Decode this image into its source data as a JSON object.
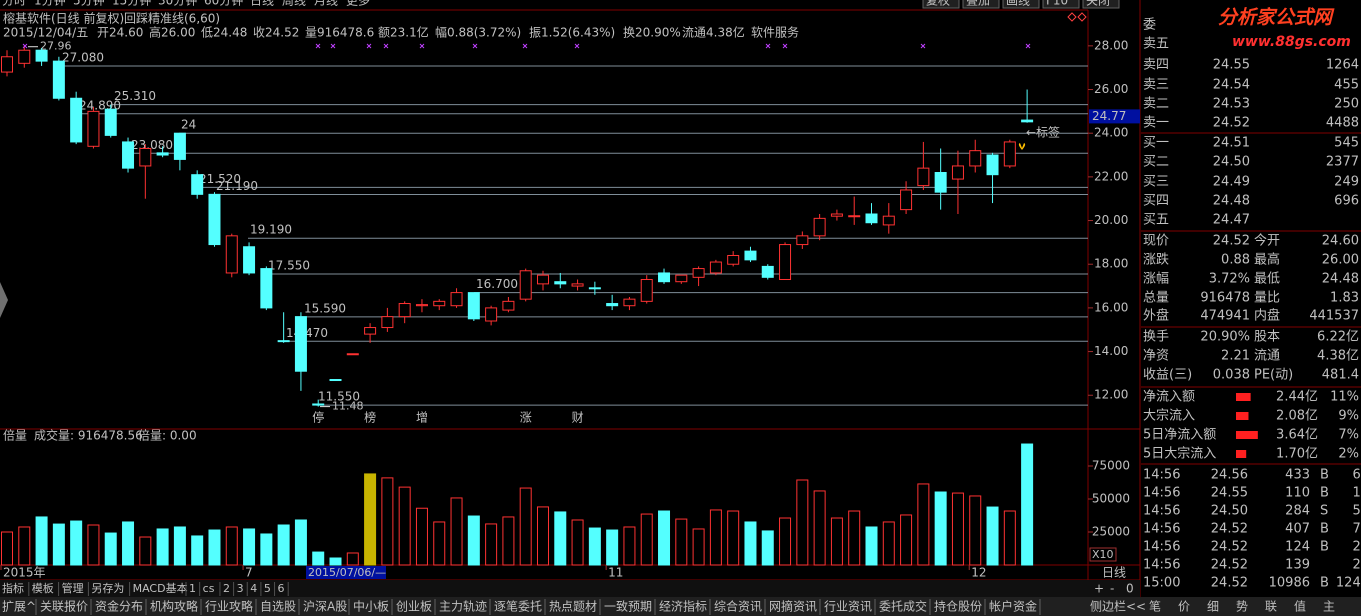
{
  "toolbar": {
    "periods": [
      "分时",
      "1分钟",
      "5分钟",
      "15分钟",
      "30分钟",
      "60分钟",
      "日线",
      "周线",
      "月线",
      "更多"
    ],
    "tools": [
      "复权",
      "叠加",
      "画线",
      "F10",
      "关闭"
    ]
  },
  "chart_data": [
    {
      "type": "candlestick",
      "title": "榕基软件(日线 前复权)",
      "indicator": "回踩精准线(6,60)",
      "info": [
        {
          "text": "2015/12/04/五",
          "color": "#c0c0c0"
        },
        {
          "text": "开24.60",
          "color": "#ff5050"
        },
        {
          "text": "高26.00",
          "color": "#ff5050"
        },
        {
          "text": "低24.48",
          "color": "#ff5050"
        },
        {
          "text": "收24.52",
          "color": "#ff5050"
        },
        {
          "text": "量916478.6",
          "color": "#e0e0e0"
        },
        {
          "text": "额23.1亿",
          "color": "#e0e0e0"
        },
        {
          "text": "幅0.88(3.72%)",
          "color": "#ff5050"
        },
        {
          "text": "振1.52(6.43%)",
          "color": "#e0e0e0"
        },
        {
          "text": "换20.90%",
          "color": "#e0e0e0"
        },
        {
          "text": "流通4.38亿",
          "color": "#e0e0e0"
        },
        {
          "text": "软件服务",
          "color": "#e0e0e0"
        }
      ],
      "categories": [
        "2015年",
        null,
        null,
        null,
        null,
        null,
        null,
        null,
        null,
        null,
        null,
        null,
        null,
        null,
        "7",
        null,
        null,
        null,
        null,
        null,
        null,
        null,
        null,
        null,
        null,
        null,
        null,
        null,
        null,
        null,
        null,
        null,
        null,
        null,
        null,
        "11",
        null,
        null,
        null,
        null,
        null,
        null,
        null,
        null,
        null,
        null,
        null,
        null,
        null,
        null,
        null,
        null,
        null,
        null,
        null,
        null,
        "12",
        null,
        null,
        null
      ],
      "cursor_date": "2015/07/06/—",
      "period_label": "日线",
      "open": [
        26.8,
        27.2,
        27.8,
        27.3,
        25.6,
        23.4,
        25.1,
        23.6,
        22.5,
        23.1,
        24.0,
        22.1,
        21.2,
        17.6,
        18.8,
        17.8,
        14.5,
        15.6,
        11.6,
        12.72,
        13.88,
        14.8,
        15.1,
        15.6,
        16.1,
        16.1,
        16.1,
        16.7,
        15.4,
        15.9,
        16.4,
        17.1,
        17.2,
        17.0,
        16.92,
        16.2,
        16.1,
        16.3,
        17.6,
        17.2,
        17.4,
        17.6,
        18.0,
        18.6,
        17.9,
        17.3,
        18.9,
        19.3,
        20.2,
        20.2,
        20.3,
        19.8,
        20.5,
        21.6,
        22.2,
        21.9,
        22.5,
        23.0,
        22.5,
        24.6
      ],
      "high": [
        27.8,
        28.0,
        27.9,
        27.5,
        25.9,
        25.2,
        25.31,
        23.8,
        23.5,
        23.4,
        24.0,
        22.3,
        21.3,
        19.4,
        19.0,
        17.9,
        15.8,
        15.8,
        11.8,
        12.72,
        13.9,
        15.3,
        16.0,
        16.3,
        16.4,
        16.4,
        16.9,
        16.7,
        16.1,
        16.5,
        17.8,
        17.7,
        17.6,
        17.3,
        17.2,
        16.6,
        16.5,
        17.5,
        17.8,
        17.5,
        17.9,
        18.2,
        18.6,
        18.8,
        18.0,
        19.0,
        19.5,
        20.3,
        20.5,
        21.1,
        20.8,
        20.8,
        21.8,
        23.6,
        23.3,
        23.2,
        23.7,
        23.1,
        23.7,
        26.0
      ],
      "low": [
        26.6,
        27.0,
        27.08,
        25.5,
        23.5,
        23.3,
        23.8,
        22.2,
        21.0,
        22.9,
        22.3,
        21.0,
        18.8,
        17.4,
        17.5,
        15.9,
        14.4,
        12.2,
        11.48,
        12.7,
        13.88,
        14.4,
        14.9,
        15.3,
        15.8,
        15.9,
        16.0,
        15.4,
        15.2,
        15.8,
        16.3,
        16.8,
        16.9,
        16.8,
        16.6,
        15.9,
        15.9,
        16.2,
        17.1,
        17.1,
        17.0,
        17.5,
        17.9,
        18.1,
        17.3,
        17.3,
        18.7,
        19.1,
        20.0,
        19.8,
        19.8,
        19.4,
        20.3,
        21.4,
        20.5,
        20.3,
        22.2,
        20.8,
        22.4,
        24.48
      ],
      "close": [
        27.5,
        27.8,
        27.3,
        25.6,
        23.6,
        25.0,
        23.9,
        22.4,
        23.3,
        23.0,
        22.8,
        21.2,
        18.9,
        19.3,
        17.6,
        16.0,
        14.47,
        13.1,
        11.55,
        12.7,
        13.9,
        15.1,
        15.6,
        16.2,
        16.15,
        16.3,
        16.7,
        15.5,
        16.0,
        16.3,
        17.7,
        17.5,
        17.1,
        17.1,
        16.9,
        16.1,
        16.4,
        17.3,
        17.2,
        17.5,
        17.8,
        18.1,
        18.4,
        18.2,
        17.4,
        18.9,
        19.3,
        20.1,
        20.3,
        20.22,
        19.9,
        20.2,
        21.4,
        22.4,
        21.3,
        22.5,
        23.2,
        22.1,
        23.6,
        24.52
      ],
      "up_color": "#ff3232",
      "down_color": "#54ffff",
      "ylim": [
        10.5,
        29.55
      ],
      "yticks": [
        {
          "value": 12,
          "label": "12.00"
        },
        {
          "value": 14,
          "label": "14.00"
        },
        {
          "value": 16,
          "label": "16.00"
        },
        {
          "value": 18,
          "label": "18.00"
        },
        {
          "value": 20,
          "label": "20.00"
        },
        {
          "value": 22,
          "label": "22.00"
        },
        {
          "value": 24,
          "label": "24.00"
        },
        {
          "value": 26,
          "label": "26.00"
        },
        {
          "value": 28,
          "label": "28.00"
        }
      ],
      "current_price": 24.77,
      "levels": [
        {
          "value": 27.08,
          "label": "27.080"
        },
        {
          "value": 25.31,
          "label": "25.310"
        },
        {
          "value": 24.89,
          "label": "24.890"
        },
        {
          "value": 24,
          "label": "24"
        },
        {
          "value": 23.08,
          "label": "23.080"
        },
        {
          "value": 21.52,
          "label": "21.520"
        },
        {
          "value": 21.19,
          "label": "21.190"
        },
        {
          "value": 19.19,
          "label": "19.190"
        },
        {
          "value": 17.55,
          "label": "17.550"
        },
        {
          "value": 16.7,
          "label": "16.700"
        },
        {
          "value": 15.59,
          "label": "15.590"
        },
        {
          "value": 14.47,
          "label": "14.470"
        },
        {
          "value": 11.55,
          "label": "11.550"
        }
      ],
      "level_color": "#7f8e99",
      "extreme_labels": [
        {
          "value": 27.96,
          "label": "27.96"
        },
        {
          "value": 11.48,
          "label": "11.48"
        }
      ],
      "tag_label": "←标签",
      "events": [
        {
          "text": "停",
          "color": "#54ffff"
        },
        {
          "text": "榜",
          "color": "#ffb030"
        },
        {
          "text": "增",
          "color": "#ff6040"
        },
        {
          "text": "涨",
          "color": "#ff7090"
        },
        {
          "text": "财",
          "color": "#54ffff"
        }
      ]
    },
    {
      "type": "bar",
      "title": "倍量",
      "volume_label": "成交量: 916478.56",
      "signal_label": "倍量: 0.00",
      "unit_label": "X10",
      "values": [
        25000,
        28800,
        36400,
        31000,
        33300,
        30300,
        24200,
        32600,
        21200,
        27300,
        28800,
        22000,
        26500,
        28800,
        27300,
        23500,
        30300,
        34100,
        9800,
        5300,
        9100,
        69000,
        66000,
        59000,
        43000,
        32600,
        50800,
        37100,
        31100,
        36400,
        58300,
        44000,
        40200,
        34100,
        28000,
        26500,
        28800,
        38600,
        40900,
        34800,
        27300,
        41700,
        40900,
        32600,
        25800,
        35600,
        64400,
        56100,
        35600,
        40900,
        28800,
        32600,
        37900,
        61400,
        55300,
        54500,
        52300,
        43900,
        40900,
        91647.856
      ],
      "highlight": [
        21
      ],
      "highlight_color": "#c8b400",
      "ylim": [
        0,
        100000
      ],
      "yticks": [
        25000,
        50000,
        75000
      ]
    }
  ],
  "quote_panel": {
    "watermark": [
      "分析家公式网",
      "www.88gs.com"
    ],
    "header": "委",
    "order_book": [
      [
        "卖五"
      ],
      [
        "卖四",
        "24.55",
        "1264"
      ],
      [
        "卖三",
        "24.54",
        "455"
      ],
      [
        "卖二",
        "24.53",
        "250"
      ],
      [
        "卖一",
        "24.52",
        "4488"
      ],
      [
        "买一",
        "24.51",
        "545"
      ],
      [
        "买二",
        "24.50",
        "2377"
      ],
      [
        "买三",
        "24.49",
        "249"
      ],
      [
        "买四",
        "24.48",
        "696"
      ],
      [
        "买五",
        "24.47"
      ]
    ],
    "quotes": [
      [
        "现价",
        "24.52",
        "今开",
        "24.60"
      ],
      [
        "涨跌",
        "0.88",
        "最高",
        "26.00"
      ],
      [
        "涨幅",
        "3.72%",
        "最低",
        "24.48"
      ],
      [
        "总量",
        "916478",
        "量比",
        "1.83"
      ],
      [
        "外盘",
        "474941",
        "内盘",
        "441537"
      ],
      [
        "换手",
        "20.90%",
        "股本",
        "6.22亿"
      ],
      [
        "净资",
        "2.21",
        "流通",
        "4.38亿"
      ],
      [
        "收益(三)",
        "0.038",
        "PE(动)",
        "481.4"
      ]
    ],
    "flows": [
      [
        "净流入额",
        "2.44亿",
        "11%"
      ],
      [
        "大宗流入",
        "2.08亿",
        "9%"
      ],
      [
        "5日净流入额",
        "3.64亿",
        "7%"
      ],
      [
        "5日大宗流入",
        "1.70亿",
        "2%"
      ]
    ],
    "flow_amounts": [
      2.44,
      2.08,
      3.64,
      1.7
    ],
    "ticks": [
      [
        "14:56",
        "24.56",
        "433",
        "B",
        "61"
      ],
      [
        "14:56",
        "24.55",
        "110",
        "B",
        "18"
      ],
      [
        "14:56",
        "24.50",
        "284",
        "S",
        "56"
      ],
      [
        "14:56",
        "24.52",
        "407",
        "B",
        "79"
      ],
      [
        "14:56",
        "24.52",
        "124",
        "B",
        "26"
      ],
      [
        "14:56",
        "24.52",
        "139",
        null,
        "26"
      ],
      [
        "15:00",
        "24.52",
        "10986",
        "B",
        "1247"
      ]
    ]
  },
  "tabs": {
    "indicator_tabs": [
      "指标",
      "模板",
      "管理",
      "另存为",
      "MACD基本",
      "1",
      "cs",
      "2",
      "3",
      "4",
      "5",
      "6"
    ],
    "zoom": [
      "+",
      "-",
      "0"
    ],
    "function_tabs": [
      "扩展^",
      "关联报价",
      "资金分布",
      "机构攻略",
      "行业攻略",
      "自选股",
      "沪深A股",
      "中小板",
      "创业板",
      "主力轨迹",
      "逐笔委托",
      "热点题材",
      "一致预期",
      "经济指标",
      "综合资讯",
      "网摘资讯",
      "行业资讯",
      "委托成交",
      "持仓股份",
      "帐户资金"
    ],
    "sidebar": "侧边栏<<",
    "panel_tabs": [
      "笔",
      "价",
      "细",
      "势",
      "联",
      "值",
      "主"
    ]
  }
}
